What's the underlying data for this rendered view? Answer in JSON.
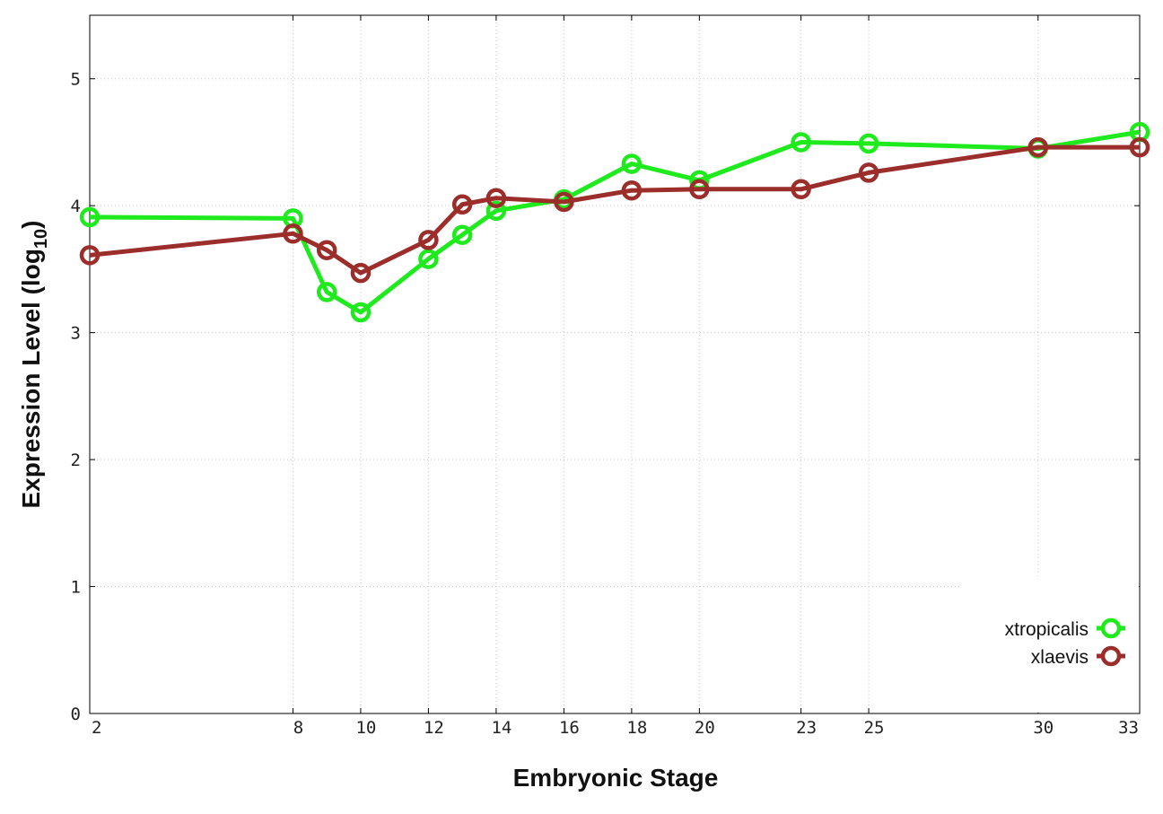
{
  "chart_data": {
    "type": "line",
    "xlabel": "Embryonic Stage",
    "ylabel": "Expression Level (log",
    "ylabel_subscript": "10",
    "ylabel_suffix": ")",
    "x": [
      2,
      8,
      9,
      10,
      12,
      13,
      14,
      16,
      18,
      20,
      23,
      25,
      30,
      33
    ],
    "x_ticks": [
      "2",
      "8",
      "10",
      "12",
      "14",
      "16",
      "18",
      "20",
      "23",
      "25",
      "30",
      "33"
    ],
    "y_ticks": [
      "0",
      "1",
      "2",
      "3",
      "4",
      "5"
    ],
    "xlim": [
      2,
      33
    ],
    "ylim": [
      0,
      5.5
    ],
    "grid": true,
    "legend_position": "bottom-right",
    "series": [
      {
        "name": "xtropicalis",
        "color": "#1eea1e",
        "values": [
          3.91,
          3.9,
          3.32,
          3.16,
          3.58,
          3.77,
          3.96,
          4.05,
          4.33,
          4.2,
          4.5,
          4.49,
          4.45,
          4.58
        ]
      },
      {
        "name": "xlaevis",
        "color": "#9b2d2a",
        "values": [
          3.61,
          3.78,
          3.65,
          3.47,
          3.73,
          4.01,
          4.06,
          4.03,
          4.12,
          4.13,
          4.13,
          4.26,
          4.46,
          4.46
        ]
      }
    ]
  }
}
